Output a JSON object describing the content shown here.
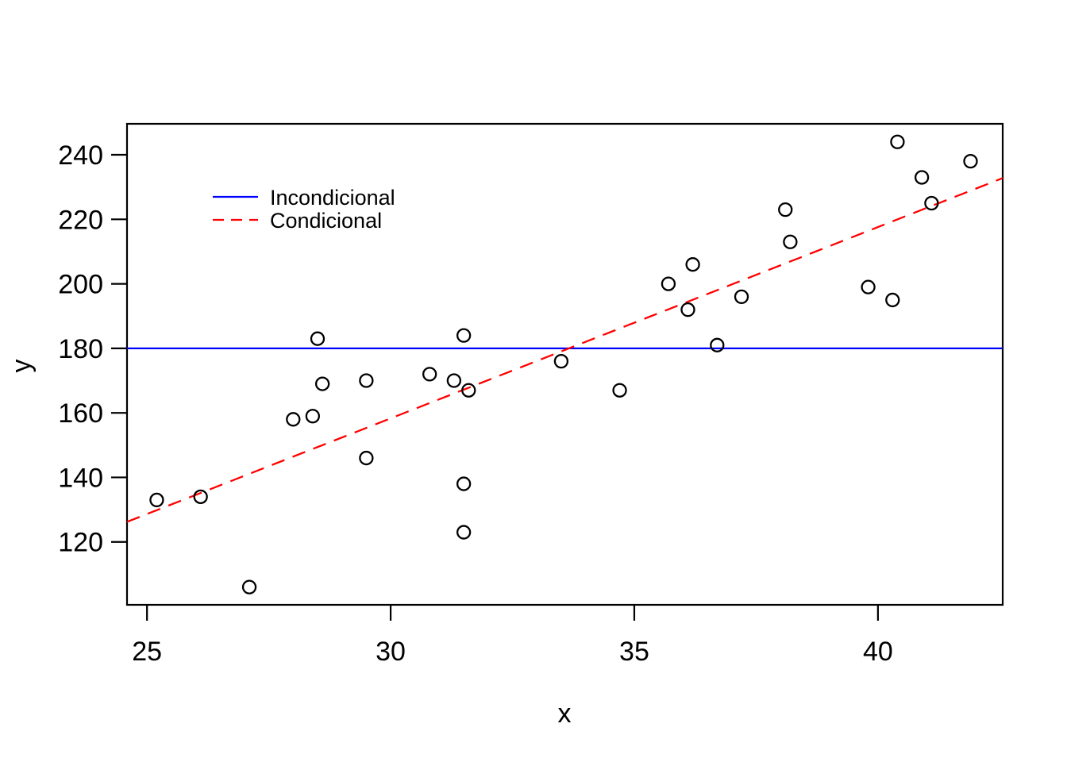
{
  "figure": {
    "background": "#FFFFFF",
    "border_color": "#000000"
  },
  "chart_data": {
    "type": "scatter",
    "title": "",
    "xlabel": "x",
    "ylabel": "y",
    "xlim": [
      24.59,
      42.56
    ],
    "ylim": [
      100.5,
      249.6
    ],
    "x_ticks": [
      25,
      30,
      35,
      40
    ],
    "y_ticks": [
      120,
      140,
      160,
      180,
      200,
      220,
      240
    ],
    "grid": false,
    "points": [
      [
        25.2,
        133
      ],
      [
        26.1,
        134
      ],
      [
        27.1,
        106
      ],
      [
        28.0,
        158
      ],
      [
        28.4,
        159
      ],
      [
        28.5,
        183
      ],
      [
        28.6,
        169
      ],
      [
        29.5,
        146
      ],
      [
        29.5,
        170
      ],
      [
        30.8,
        172
      ],
      [
        31.3,
        170
      ],
      [
        31.5,
        184
      ],
      [
        31.5,
        138
      ],
      [
        31.5,
        123
      ],
      [
        31.6,
        167
      ],
      [
        33.5,
        176
      ],
      [
        34.7,
        167
      ],
      [
        35.7,
        200
      ],
      [
        36.1,
        192
      ],
      [
        36.2,
        206
      ],
      [
        36.7,
        181
      ],
      [
        37.2,
        196
      ],
      [
        38.1,
        223
      ],
      [
        38.2,
        213
      ],
      [
        39.8,
        199
      ],
      [
        40.3,
        195
      ],
      [
        40.4,
        244
      ],
      [
        40.9,
        233
      ],
      [
        41.1,
        225
      ],
      [
        41.9,
        238
      ]
    ],
    "point_style": {
      "marker": "open-circle",
      "color": "#000000"
    },
    "lines": [
      {
        "name": "Incondicional",
        "type": "horizontal",
        "y": 180,
        "color": "#0000FF",
        "dash": "solid"
      },
      {
        "name": "Condicional",
        "type": "linear",
        "slope": 5.93,
        "intercept": -19.6,
        "color": "#FF0000",
        "dash": "dashed"
      }
    ],
    "legend": {
      "position": "upper-left-inset",
      "entries": [
        {
          "label": "Incondicional",
          "color": "#0000FF",
          "dash": "solid"
        },
        {
          "label": "Condicional",
          "color": "#FF0000",
          "dash": "dashed"
        }
      ]
    }
  }
}
